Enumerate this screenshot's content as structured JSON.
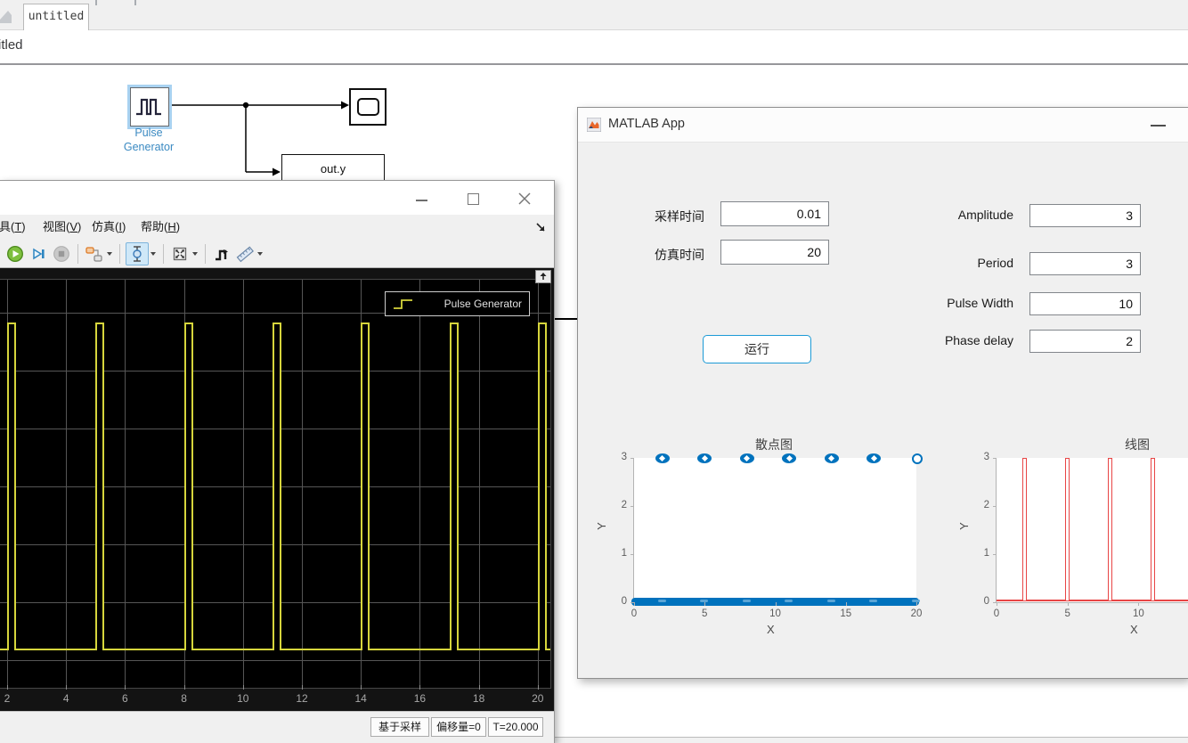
{
  "top_bar": {
    "tab_label": "untitled",
    "clipped_breadcrumb": "itled"
  },
  "diagram": {
    "pulse_block_label_1": "Pulse",
    "pulse_block_label_2": "Generator",
    "out_block_label": "out.y"
  },
  "scope": {
    "menu": [
      {
        "pre": "工具(",
        "key": "T",
        "post": ")"
      },
      {
        "pre": "视图(",
        "key": "V",
        "post": ")"
      },
      {
        "pre": "仿真(",
        "key": "I",
        "post": ")"
      },
      {
        "pre": "帮助(",
        "key": "H",
        "post": ")"
      }
    ],
    "toolbar_icons": [
      "run",
      "step-forward",
      "stop",
      "configure-signals",
      "cursor-measurements",
      "zoom-fit",
      "step-signal",
      "measurements"
    ],
    "legend_label": "Pulse Generator",
    "status": [
      "基于采样",
      "偏移量=0",
      "T=20.000"
    ]
  },
  "app": {
    "title": "MATLAB App",
    "fields_cn": [
      {
        "label": "采样时间",
        "value": "0.01"
      },
      {
        "label": "仿真时间",
        "value": "20"
      }
    ],
    "fields_en": [
      {
        "label": "Amplitude",
        "value": "3"
      },
      {
        "label": "Period",
        "value": "3"
      },
      {
        "label": "Pulse Width",
        "value": "10"
      },
      {
        "label": "Phase delay",
        "value": "2"
      }
    ],
    "run_label": "运行",
    "scatter": {
      "title": "散点图",
      "xlabel": "X",
      "ylabel": "Y"
    },
    "line": {
      "title": "线图",
      "xlabel": "X",
      "ylabel": "Y"
    }
  },
  "chart_data": [
    {
      "type": "line",
      "context": "simulink-scope",
      "series": [
        {
          "name": "Pulse Generator"
        }
      ],
      "color": "#d6d53c",
      "background": "#000000",
      "x_ticks": [
        2,
        4,
        6,
        8,
        10,
        12,
        14,
        16,
        18,
        20
      ],
      "pulse": {
        "times": [
          2,
          5,
          8,
          11,
          14,
          17,
          20
        ],
        "width": 0.3,
        "high": 3,
        "low": 0
      },
      "legend_position": "top-right",
      "grid": true
    },
    {
      "type": "scatter",
      "title": "散点图",
      "xlabel": "X",
      "ylabel": "Y",
      "xlim": [
        0,
        20
      ],
      "ylim": [
        0,
        3
      ],
      "x_ticks": [
        0,
        5,
        10,
        15,
        20
      ],
      "y_ticks": [
        0,
        1,
        2,
        3
      ],
      "marker_color": "#0072BD",
      "high_marker_times": [
        2,
        5,
        8,
        11,
        14,
        17,
        20
      ],
      "baseline": "dense markers at y=0 across x=0..20",
      "grid": false
    },
    {
      "type": "line",
      "title": "线图",
      "xlabel": "X",
      "ylabel": "Y",
      "ylim": [
        0,
        3
      ],
      "x_ticks_visible": [
        0,
        5,
        10
      ],
      "y_ticks": [
        0,
        1,
        2,
        3
      ],
      "line_color": "#e84545",
      "pulse": {
        "times": [
          2,
          5,
          8,
          11
        ],
        "width": 0.3,
        "high": 3,
        "low": 0
      },
      "grid": false
    }
  ]
}
